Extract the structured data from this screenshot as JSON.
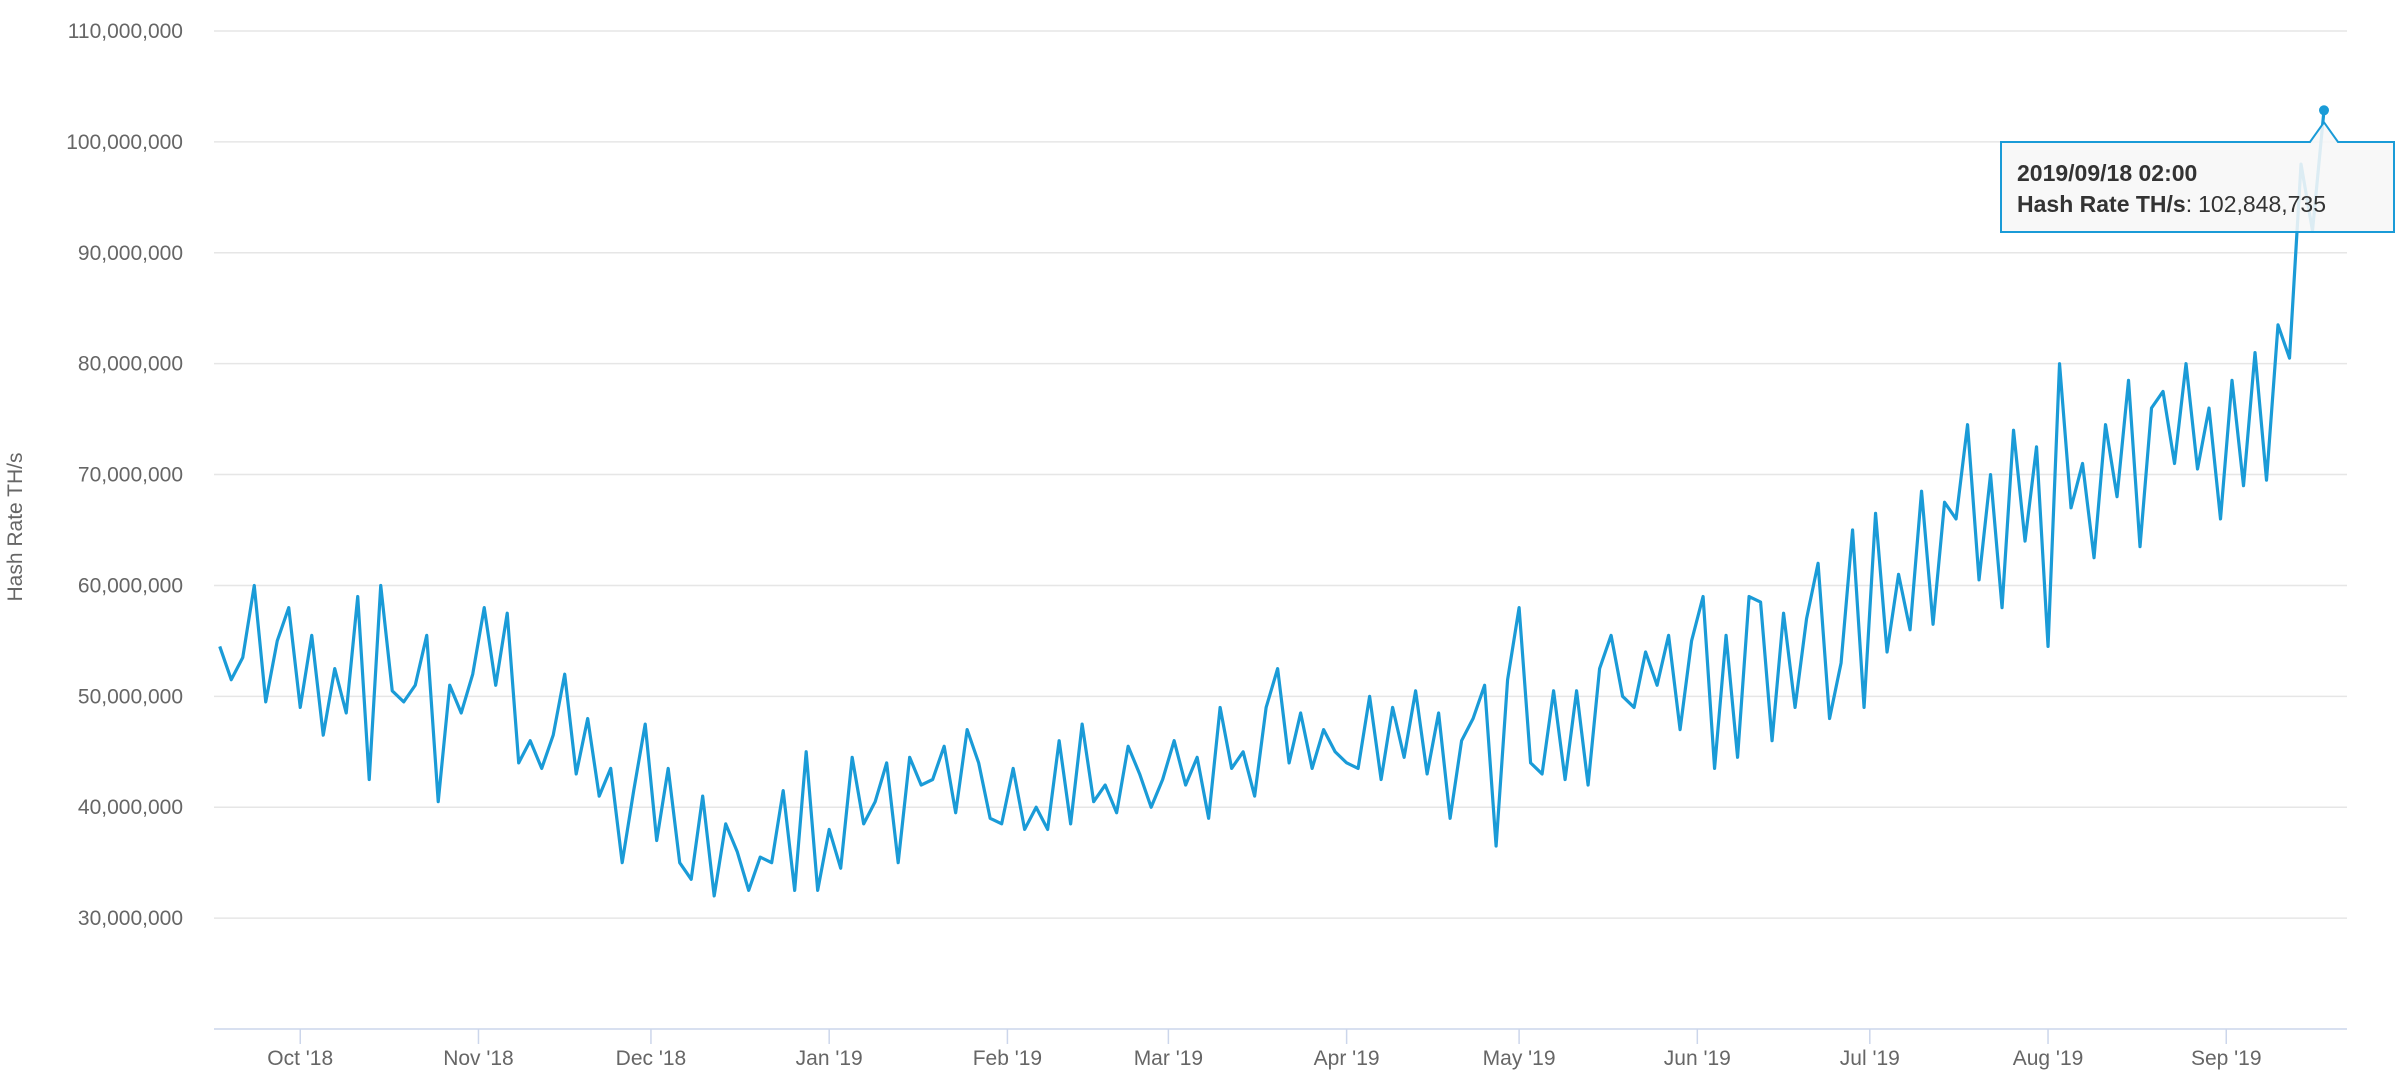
{
  "chart_data": {
    "type": "line",
    "y_label": "Hash Rate TH/s",
    "xlim": [
      "2018/09/16",
      "2019/09/22"
    ],
    "ylim": [
      20000000,
      110000000
    ],
    "grid": true,
    "yticks": [
      {
        "value": 30000000,
        "label": "30,000,000"
      },
      {
        "value": 40000000,
        "label": "40,000,000"
      },
      {
        "value": 50000000,
        "label": "50,000,000"
      },
      {
        "value": 60000000,
        "label": "60,000,000"
      },
      {
        "value": 70000000,
        "label": "70,000,000"
      },
      {
        "value": 80000000,
        "label": "80,000,000"
      },
      {
        "value": 90000000,
        "label": "90,000,000"
      },
      {
        "value": 100000000,
        "label": "100,000,000"
      },
      {
        "value": 110000000,
        "label": "110,000,000"
      }
    ],
    "xticks": [
      {
        "value": "2018/10/01",
        "label": "Oct '18"
      },
      {
        "value": "2018/11/01",
        "label": "Nov '18"
      },
      {
        "value": "2018/12/01",
        "label": "Dec '18"
      },
      {
        "value": "2019/01/01",
        "label": "Jan '19"
      },
      {
        "value": "2019/02/01",
        "label": "Feb '19"
      },
      {
        "value": "2019/03/01",
        "label": "Mar '19"
      },
      {
        "value": "2019/04/01",
        "label": "Apr '19"
      },
      {
        "value": "2019/05/01",
        "label": "May '19"
      },
      {
        "value": "2019/06/01",
        "label": "Jun '19"
      },
      {
        "value": "2019/07/01",
        "label": "Jul '19"
      },
      {
        "value": "2019/08/01",
        "label": "Aug '19"
      },
      {
        "value": "2019/09/01",
        "label": "Sep '19"
      }
    ],
    "x": [
      "2018/09/17",
      "2018/09/19",
      "2018/09/21",
      "2018/09/23",
      "2018/09/25",
      "2018/09/27",
      "2018/09/29",
      "2018/10/01",
      "2018/10/03",
      "2018/10/05",
      "2018/10/07",
      "2018/10/09",
      "2018/10/11",
      "2018/10/13",
      "2018/10/15",
      "2018/10/17",
      "2018/10/19",
      "2018/10/21",
      "2018/10/23",
      "2018/10/25",
      "2018/10/27",
      "2018/10/29",
      "2018/10/31",
      "2018/11/02",
      "2018/11/04",
      "2018/11/06",
      "2018/11/08",
      "2018/11/10",
      "2018/11/12",
      "2018/11/14",
      "2018/11/16",
      "2018/11/18",
      "2018/11/20",
      "2018/11/22",
      "2018/11/24",
      "2018/11/26",
      "2018/11/28",
      "2018/11/30",
      "2018/12/02",
      "2018/12/04",
      "2018/12/06",
      "2018/12/08",
      "2018/12/10",
      "2018/12/12",
      "2018/12/14",
      "2018/12/16",
      "2018/12/18",
      "2018/12/20",
      "2018/12/22",
      "2018/12/24",
      "2018/12/26",
      "2018/12/28",
      "2018/12/30",
      "2019/01/01",
      "2019/01/03",
      "2019/01/05",
      "2019/01/07",
      "2019/01/09",
      "2019/01/11",
      "2019/01/13",
      "2019/01/15",
      "2019/01/17",
      "2019/01/19",
      "2019/01/21",
      "2019/01/23",
      "2019/01/25",
      "2019/01/27",
      "2019/01/29",
      "2019/01/31",
      "2019/02/02",
      "2019/02/04",
      "2019/02/06",
      "2019/02/08",
      "2019/02/10",
      "2019/02/12",
      "2019/02/14",
      "2019/02/16",
      "2019/02/18",
      "2019/02/20",
      "2019/02/22",
      "2019/02/24",
      "2019/02/26",
      "2019/02/28",
      "2019/03/02",
      "2019/03/04",
      "2019/03/06",
      "2019/03/08",
      "2019/03/10",
      "2019/03/12",
      "2019/03/14",
      "2019/03/16",
      "2019/03/18",
      "2019/03/20",
      "2019/03/22",
      "2019/03/24",
      "2019/03/26",
      "2019/03/28",
      "2019/03/30",
      "2019/04/01",
      "2019/04/03",
      "2019/04/05",
      "2019/04/07",
      "2019/04/09",
      "2019/04/11",
      "2019/04/13",
      "2019/04/15",
      "2019/04/17",
      "2019/04/19",
      "2019/04/21",
      "2019/04/23",
      "2019/04/25",
      "2019/04/27",
      "2019/04/29",
      "2019/05/01",
      "2019/05/03",
      "2019/05/05",
      "2019/05/07",
      "2019/05/09",
      "2019/05/11",
      "2019/05/13",
      "2019/05/15",
      "2019/05/17",
      "2019/05/19",
      "2019/05/21",
      "2019/05/23",
      "2019/05/25",
      "2019/05/27",
      "2019/05/29",
      "2019/05/31",
      "2019/06/02",
      "2019/06/04",
      "2019/06/06",
      "2019/06/08",
      "2019/06/10",
      "2019/06/12",
      "2019/06/14",
      "2019/06/16",
      "2019/06/18",
      "2019/06/20",
      "2019/06/22",
      "2019/06/24",
      "2019/06/26",
      "2019/06/28",
      "2019/06/30",
      "2019/07/02",
      "2019/07/04",
      "2019/07/06",
      "2019/07/08",
      "2019/07/10",
      "2019/07/12",
      "2019/07/14",
      "2019/07/16",
      "2019/07/18",
      "2019/07/20",
      "2019/07/22",
      "2019/07/24",
      "2019/07/26",
      "2019/07/28",
      "2019/07/30",
      "2019/08/01",
      "2019/08/03",
      "2019/08/05",
      "2019/08/07",
      "2019/08/09",
      "2019/08/11",
      "2019/08/13",
      "2019/08/15",
      "2019/08/17",
      "2019/08/19",
      "2019/08/21",
      "2019/08/23",
      "2019/08/25",
      "2019/08/27",
      "2019/08/29",
      "2019/08/31",
      "2019/09/02",
      "2019/09/04",
      "2019/09/06",
      "2019/09/08",
      "2019/09/10",
      "2019/09/12",
      "2019/09/14",
      "2019/09/16",
      "2019/09/18"
    ],
    "series": [
      {
        "name": "Hash Rate TH/s",
        "color": "#1a9bd7",
        "values": [
          54500000,
          51500000,
          53500000,
          60000000,
          49500000,
          55000000,
          58000000,
          49000000,
          55500000,
          46500000,
          52500000,
          48500000,
          59000000,
          42500000,
          60000000,
          50500000,
          49500000,
          51000000,
          55500000,
          40500000,
          51000000,
          48500000,
          52000000,
          58000000,
          51000000,
          57500000,
          44000000,
          46000000,
          43500000,
          46500000,
          52000000,
          43000000,
          48000000,
          41000000,
          43500000,
          35000000,
          41500000,
          47500000,
          37000000,
          43500000,
          35000000,
          33500000,
          41000000,
          32000000,
          38500000,
          36000000,
          32500000,
          35500000,
          35000000,
          41500000,
          32500000,
          45000000,
          32500000,
          38000000,
          34500000,
          44500000,
          38500000,
          40500000,
          44000000,
          35000000,
          44500000,
          42000000,
          42500000,
          45500000,
          39500000,
          47000000,
          44000000,
          39000000,
          38500000,
          43500000,
          38000000,
          40000000,
          38000000,
          46000000,
          38500000,
          47500000,
          40500000,
          42000000,
          39500000,
          45500000,
          43000000,
          40000000,
          42500000,
          46000000,
          42000000,
          44500000,
          39000000,
          49000000,
          43500000,
          45000000,
          41000000,
          49000000,
          52500000,
          44000000,
          48500000,
          43500000,
          47000000,
          45000000,
          44000000,
          43500000,
          50000000,
          42500000,
          49000000,
          44500000,
          50500000,
          43000000,
          48500000,
          39000000,
          46000000,
          48000000,
          51000000,
          36500000,
          51500000,
          58000000,
          44000000,
          43000000,
          50500000,
          42500000,
          50500000,
          42000000,
          52500000,
          55500000,
          50000000,
          49000000,
          54000000,
          51000000,
          55500000,
          47000000,
          55000000,
          59000000,
          43500000,
          55500000,
          44500000,
          59000000,
          58500000,
          46000000,
          57500000,
          49000000,
          57000000,
          62000000,
          48000000,
          53000000,
          65000000,
          49000000,
          66500000,
          54000000,
          61000000,
          56000000,
          68500000,
          56500000,
          67500000,
          66000000,
          74500000,
          60500000,
          70000000,
          58000000,
          74000000,
          64000000,
          72500000,
          54500000,
          80000000,
          67000000,
          71000000,
          62500000,
          74500000,
          68000000,
          78500000,
          63500000,
          76000000,
          77500000,
          71000000,
          80000000,
          70500000,
          76000000,
          66000000,
          78500000,
          69000000,
          81000000,
          69500000,
          83500000,
          80500000,
          98000000,
          92000000,
          102848735
        ]
      }
    ],
    "tooltip": {
      "date": "2019/09/18 02:00",
      "separator": ":",
      "value": 102848735,
      "value_label": "102,848,735"
    }
  }
}
